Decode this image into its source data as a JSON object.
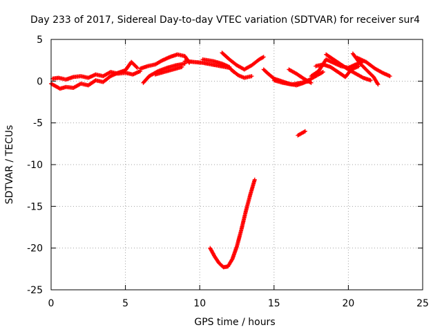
{
  "chart_data": {
    "type": "scatter",
    "title": "Day 233 of 2017, Sidereal Day-to-day VTEC variation (SDTVAR) for receiver sur4",
    "xlabel": "GPS time / hours",
    "ylabel": "SDTVAR / TECUs",
    "xlim": [
      0,
      25
    ],
    "ylim": [
      -25,
      5
    ],
    "xticks": [
      0,
      5,
      10,
      15,
      20,
      25
    ],
    "yticks": [
      -25,
      -20,
      -15,
      -10,
      -5,
      0,
      5
    ],
    "xtick_labels": [
      "0",
      "5",
      "10",
      "15",
      "20",
      "25"
    ],
    "ytick_labels": [
      "-25",
      "-20",
      "-15",
      "-10",
      "-5",
      "0",
      "5"
    ],
    "grid": true,
    "colors": {
      "series": "#ff0000",
      "axis": "#000000",
      "grid": "#a0a0a0"
    },
    "series": [
      {
        "name": "sur4",
        "marker": "plus",
        "segments": [
          [
            [
              0,
              -0.3
            ],
            [
              0.3,
              -0.6
            ],
            [
              0.6,
              -0.9
            ],
            [
              1.0,
              -0.7
            ],
            [
              1.5,
              -0.8
            ],
            [
              2.0,
              -0.3
            ],
            [
              2.5,
              -0.5
            ],
            [
              3.0,
              0.1
            ],
            [
              3.5,
              -0.1
            ],
            [
              4.0,
              0.6
            ],
            [
              4.5,
              1.0
            ],
            [
              5.0,
              1.3
            ],
            [
              5.4,
              2.3
            ],
            [
              5.8,
              1.6
            ]
          ],
          [
            [
              0.1,
              0.3
            ],
            [
              0.5,
              0.4
            ],
            [
              1.0,
              0.2
            ],
            [
              1.5,
              0.5
            ],
            [
              2.0,
              0.6
            ],
            [
              2.5,
              0.4
            ],
            [
              3.0,
              0.8
            ],
            [
              3.5,
              0.6
            ],
            [
              4.0,
              1.1
            ],
            [
              4.5,
              0.9
            ],
            [
              5.0,
              1.0
            ],
            [
              5.5,
              0.8
            ],
            [
              6.0,
              1.2
            ]
          ],
          [
            [
              6.0,
              1.5
            ],
            [
              6.5,
              1.8
            ],
            [
              7.0,
              2.0
            ],
            [
              7.5,
              2.5
            ],
            [
              8.0,
              2.9
            ],
            [
              8.5,
              3.2
            ],
            [
              9.0,
              3.0
            ],
            [
              9.3,
              2.2
            ]
          ],
          [
            [
              6.2,
              -0.2
            ],
            [
              6.6,
              0.6
            ],
            [
              7.2,
              1.2
            ],
            [
              7.8,
              1.6
            ],
            [
              8.4,
              1.9
            ],
            [
              9.0,
              2.1
            ]
          ],
          [
            [
              7.0,
              0.8
            ],
            [
              7.6,
              1.1
            ],
            [
              8.2,
              1.4
            ],
            [
              8.8,
              1.7
            ]
          ],
          [
            [
              9.0,
              2.4
            ],
            [
              9.6,
              2.3
            ],
            [
              10.2,
              2.2
            ],
            [
              10.8,
              2.0
            ],
            [
              11.4,
              1.8
            ],
            [
              12.0,
              1.6
            ],
            [
              12.3,
              1.1
            ]
          ],
          [
            [
              10.2,
              2.6
            ],
            [
              10.9,
              2.4
            ],
            [
              11.5,
              2.1
            ],
            [
              12.0,
              1.7
            ]
          ],
          [
            [
              11.5,
              3.4
            ],
            [
              12.0,
              2.6
            ],
            [
              12.5,
              1.9
            ],
            [
              13.0,
              1.4
            ],
            [
              13.5,
              1.9
            ],
            [
              14.0,
              2.6
            ],
            [
              14.3,
              2.9
            ]
          ],
          [
            [
              12.1,
              1.4
            ],
            [
              12.6,
              0.7
            ],
            [
              13.0,
              0.4
            ],
            [
              13.5,
              0.6
            ]
          ],
          [
            [
              14.3,
              1.4
            ],
            [
              14.6,
              0.9
            ],
            [
              15.0,
              0.3
            ],
            [
              15.5,
              0.0
            ],
            [
              16.0,
              -0.3
            ],
            [
              16.5,
              -0.5
            ],
            [
              17.0,
              -0.2
            ],
            [
              17.5,
              0.3
            ],
            [
              18.0,
              0.8
            ],
            [
              18.3,
              1.1
            ]
          ],
          [
            [
              15.0,
              0.1
            ],
            [
              15.6,
              -0.2
            ],
            [
              16.2,
              -0.4
            ],
            [
              16.8,
              -0.2
            ],
            [
              17.4,
              0.0
            ]
          ],
          [
            [
              16.0,
              1.4
            ],
            [
              16.5,
              0.9
            ],
            [
              17.0,
              0.3
            ],
            [
              17.5,
              -0.2
            ]
          ],
          [
            [
              17.5,
              0.6
            ],
            [
              18.0,
              1.2
            ],
            [
              18.5,
              2.6
            ],
            [
              19.0,
              2.2
            ],
            [
              19.5,
              1.8
            ],
            [
              20.0,
              1.6
            ],
            [
              20.5,
              2.0
            ],
            [
              21.0,
              2.4
            ]
          ],
          [
            [
              17.8,
              1.8
            ],
            [
              18.3,
              2.0
            ],
            [
              18.8,
              1.7
            ],
            [
              19.3,
              1.1
            ],
            [
              19.8,
              0.5
            ],
            [
              20.2,
              1.4
            ],
            [
              20.7,
              1.8
            ]
          ],
          [
            [
              18.5,
              3.2
            ],
            [
              19.0,
              2.6
            ],
            [
              19.5,
              2.0
            ],
            [
              20.0,
              1.4
            ],
            [
              20.5,
              0.9
            ],
            [
              21.0,
              0.4
            ],
            [
              21.5,
              0.1
            ]
          ],
          [
            [
              20.6,
              2.8
            ],
            [
              21.2,
              2.3
            ],
            [
              21.8,
              1.5
            ],
            [
              22.3,
              1.0
            ],
            [
              22.8,
              0.6
            ]
          ],
          [
            [
              20.3,
              3.3
            ],
            [
              20.8,
              2.1
            ],
            [
              21.3,
              1.2
            ],
            [
              21.7,
              0.5
            ],
            [
              22.0,
              -0.4
            ]
          ],
          [
            [
              16.6,
              -6.5
            ],
            [
              17.1,
              -6.0
            ]
          ],
          [
            [
              10.7,
              -20.0
            ],
            [
              11.0,
              -21.0
            ],
            [
              11.3,
              -21.8
            ],
            [
              11.6,
              -22.3
            ],
            [
              11.9,
              -22.2
            ],
            [
              12.2,
              -21.3
            ],
            [
              12.5,
              -19.8
            ],
            [
              12.8,
              -17.8
            ],
            [
              13.1,
              -15.6
            ],
            [
              13.4,
              -13.6
            ],
            [
              13.7,
              -11.8
            ]
          ]
        ]
      }
    ]
  }
}
